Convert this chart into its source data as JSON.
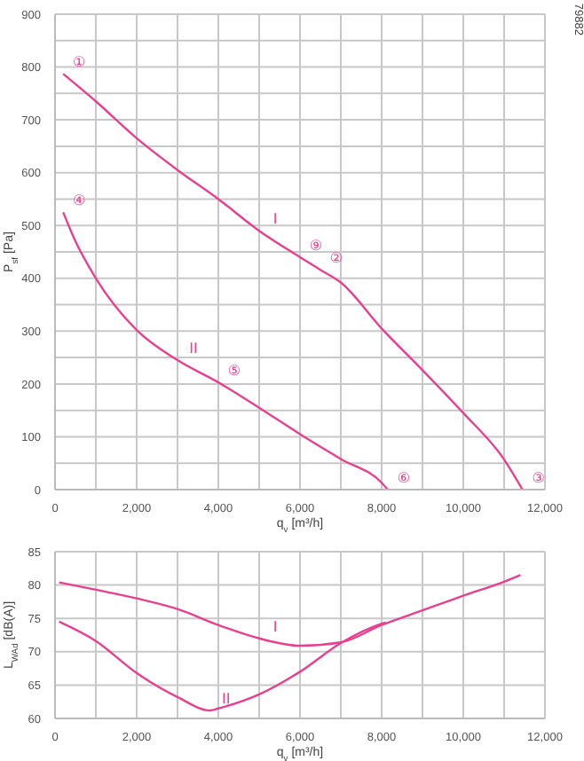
{
  "chart_data": [
    {
      "type": "line",
      "xlabel": "q$_{v}$ [m³/h]",
      "ylabel": "P$_{sf}$ [Pa]",
      "xlim": [
        0,
        12000
      ],
      "ylim": [
        0,
        900
      ],
      "grid": true,
      "marker": "none",
      "line_style": "solid",
      "xticks": [
        0,
        {
          "value": 1000,
          "label": null
        },
        {
          "value": 2000,
          "label": "2,000"
        },
        {
          "value": 3000,
          "label": null
        },
        {
          "value": 4000,
          "label": "4,000"
        },
        {
          "value": 5000,
          "label": null
        },
        {
          "value": 6000,
          "label": "6,000"
        },
        {
          "value": 7000,
          "label": null
        },
        {
          "value": 8000,
          "label": "8,000"
        },
        {
          "value": 9000,
          "label": null
        },
        {
          "value": 10000,
          "label": "10,000"
        },
        {
          "value": 11000,
          "label": null
        },
        {
          "value": 12000,
          "label": "12,000"
        }
      ],
      "yticks": [
        0,
        {
          "value": 50,
          "label": null
        },
        100,
        {
          "value": 150,
          "label": null
        },
        200,
        {
          "value": 250,
          "label": null
        },
        300,
        {
          "value": 350,
          "label": null
        },
        400,
        {
          "value": 450,
          "label": null
        },
        500,
        {
          "value": 550,
          "label": null
        },
        600,
        {
          "value": 650,
          "label": null
        },
        700,
        {
          "value": 750,
          "label": null
        },
        800,
        {
          "value": 850,
          "label": null
        },
        900
      ],
      "series": [
        {
          "color": "#e8408f",
          "x": [
            200,
            1000,
            2000,
            3000,
            4000,
            5000,
            6000,
            6500,
            7000,
            8000,
            9000,
            10000,
            11000,
            11450
          ],
          "values": [
            787,
            735,
            665,
            605,
            550,
            490,
            440,
            416,
            392,
            305,
            226,
            145,
            57,
            0
          ]
        },
        {
          "color": "#e8408f",
          "x": [
            200,
            500,
            1000,
            2000,
            3000,
            4000,
            5000,
            6000,
            7000,
            8000,
            8150
          ],
          "values": [
            525,
            470,
            400,
            302,
            245,
            203,
            155,
            105,
            58,
            13,
            0
          ]
        }
      ],
      "annotations": [
        "79882",
        {
          "text": "①",
          "x": 200,
          "y": 787
        },
        {
          "text": "④",
          "x": 200,
          "y": 525
        },
        {
          "text": "⑨",
          "x": 6000,
          "y": 440
        },
        {
          "text": "②",
          "x": 6500,
          "y": 416
        },
        {
          "text": "⑤",
          "x": 4000,
          "y": 203
        },
        {
          "text": "⑥",
          "x": 8150,
          "y": 0
        },
        {
          "text": "③",
          "x": 11450,
          "y": 0
        },
        {
          "text": "I",
          "x": 5000,
          "y": 490
        },
        {
          "text": "II",
          "x": 3000,
          "y": 245
        }
      ]
    },
    {
      "type": "line",
      "xlabel": "q$_{v}$ [m³/h]",
      "ylabel": "L$_{WAd}$ [dB(A)]",
      "xlim": [
        0,
        12000
      ],
      "ylim": [
        60,
        85
      ],
      "grid": true,
      "marker": "none",
      "line_style": "solid",
      "xticks": [
        0,
        {
          "value": 1000,
          "label": null
        },
        {
          "value": 2000,
          "label": "2,000"
        },
        {
          "value": 3000,
          "label": null
        },
        {
          "value": 4000,
          "label": "4,000"
        },
        {
          "value": 5000,
          "label": null
        },
        {
          "value": 6000,
          "label": "6,000"
        },
        {
          "value": 7000,
          "label": null
        },
        {
          "value": 8000,
          "label": "8,000"
        },
        {
          "value": 9000,
          "label": null
        },
        {
          "value": 10000,
          "label": "10,000"
        },
        {
          "value": 11000,
          "label": null
        },
        {
          "value": 12000,
          "label": "12,000"
        }
      ],
      "yticks": [
        60,
        65,
        70,
        75,
        80,
        85
      ],
      "series": [
        {
          "color": "#e8408f",
          "x": [
            100,
            1000,
            2000,
            3000,
            4000,
            5000,
            6000,
            7000,
            8000,
            9000,
            10000,
            11000,
            11400
          ],
          "values": [
            80.4,
            79.3,
            78,
            76.4,
            74,
            72,
            70.9,
            71.4,
            74,
            76.2,
            78.4,
            80.5,
            81.5
          ]
        },
        {
          "color": "#e8408f",
          "x": [
            100,
            1000,
            2000,
            3000,
            3800,
            4000,
            5000,
            6000,
            7000,
            8000,
            8100
          ],
          "values": [
            74.5,
            71.6,
            66.8,
            63.2,
            61.2,
            61.5,
            63.6,
            67,
            71.3,
            74.2,
            74.4
          ]
        }
      ],
      "annotations": [
        {
          "text": "I",
          "x": 5000,
          "y": 72
        },
        {
          "text": "II",
          "x": 3800,
          "y": 61.2
        }
      ]
    }
  ]
}
